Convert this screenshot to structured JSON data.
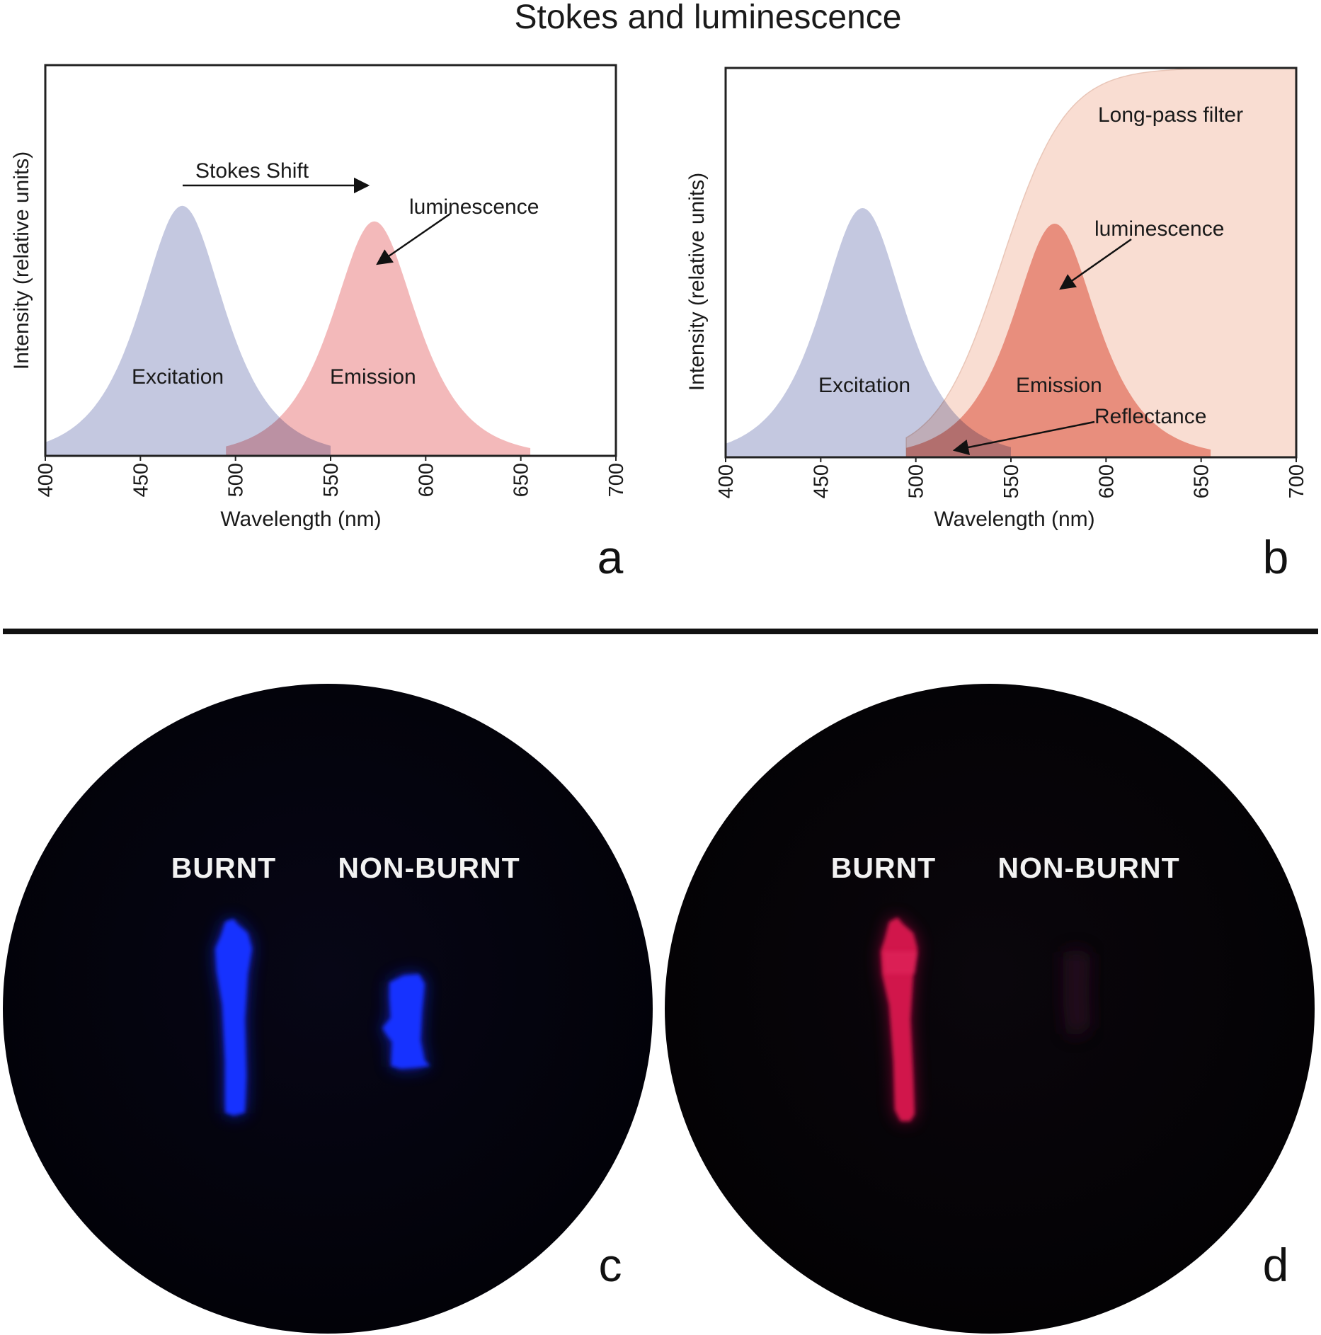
{
  "title": "Stokes and luminescence",
  "colors": {
    "excitation": "#c4c8e0",
    "emission_a": "#f2b3b4",
    "emission_b": "#eea498",
    "filter": "#f9ddd2",
    "axis": "#222222",
    "photo_bg": "#04030c",
    "burnt_blue": "#1230ff",
    "burnt_red": "#d5164e"
  },
  "chart_data": [
    {
      "type": "area",
      "panel_label": "a",
      "xlabel": "Wavelength (nm)",
      "ylabel": "Intensity (relative units)",
      "xlim": [
        400,
        700
      ],
      "ylim": [
        0,
        1
      ],
      "x_ticks": [
        "400",
        "450",
        "500",
        "550",
        "600",
        "650",
        "700"
      ],
      "grid": false,
      "series": [
        {
          "name": "Excitation",
          "peak_x": 472,
          "peak_y": 0.64,
          "width": 20,
          "range": [
            400,
            550
          ]
        },
        {
          "name": "Emission",
          "peak_x": 573,
          "peak_y": 0.6,
          "width": 20,
          "range": [
            495,
            655
          ]
        }
      ],
      "annotations": [
        {
          "text": "Stokes Shift",
          "from_x": 472,
          "to_x": 573,
          "y": 0.68
        },
        {
          "text": "luminescence",
          "target_x": 573,
          "target_y": 0.48
        }
      ]
    },
    {
      "type": "area",
      "panel_label": "b",
      "xlabel": "Wavelength (nm)",
      "ylabel": "Intensity (relative units)",
      "xlim": [
        400,
        700
      ],
      "ylim": [
        0,
        1
      ],
      "x_ticks": [
        "400",
        "450",
        "500",
        "550",
        "600",
        "650",
        "700"
      ],
      "grid": false,
      "series": [
        {
          "name": "Excitation",
          "peak_x": 472,
          "peak_y": 0.64,
          "width": 20,
          "range": [
            400,
            550
          ]
        },
        {
          "name": "Emission",
          "peak_x": 573,
          "peak_y": 0.6,
          "width": 20,
          "range": [
            495,
            655
          ]
        },
        {
          "name": "Long-pass filter",
          "edge_x": 545,
          "slope": 17,
          "top": 1.0,
          "range": [
            495,
            700
          ]
        }
      ],
      "annotations": [
        {
          "text": "luminescence",
          "target_x": 573,
          "target_y": 0.43
        },
        {
          "text": "Reflectance",
          "target_x": 520,
          "target_y": 0.02
        }
      ]
    }
  ],
  "photos": [
    {
      "panel_label": "c",
      "tone": "blue",
      "left_label": "BURNT",
      "right_label": "NON-BURNT"
    },
    {
      "panel_label": "d",
      "tone": "red",
      "left_label": "BURNT",
      "right_label": "NON-BURNT"
    }
  ]
}
